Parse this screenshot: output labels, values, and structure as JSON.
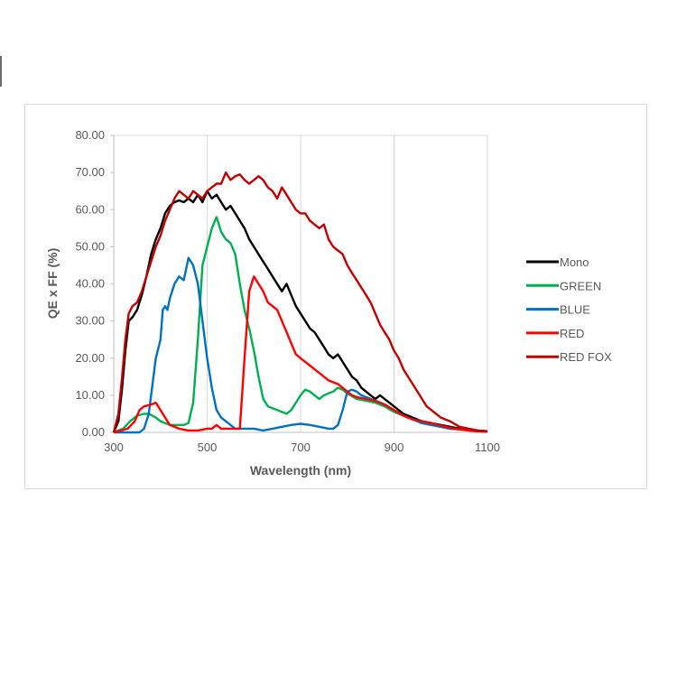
{
  "chart_data": {
    "type": "line",
    "title": "",
    "xlabel": "Wavelength (nm)",
    "ylabel": "QE x FF (%)",
    "xlim": [
      300,
      1100
    ],
    "ylim": [
      0,
      80
    ],
    "xticks": [
      "300",
      "500",
      "700",
      "900",
      "1100"
    ],
    "yticks": [
      "0.00",
      "10.00",
      "20.00",
      "30.00",
      "40.00",
      "50.00",
      "60.00",
      "70.00",
      "80.00"
    ],
    "grid": "vertical",
    "legend_position": "right",
    "series": [
      {
        "name": "Mono",
        "color": "#000000",
        "points": [
          [
            300,
            0
          ],
          [
            310,
            3
          ],
          [
            318,
            12
          ],
          [
            325,
            22
          ],
          [
            332,
            30
          ],
          [
            340,
            31
          ],
          [
            350,
            33
          ],
          [
            360,
            37
          ],
          [
            370,
            42
          ],
          [
            380,
            48
          ],
          [
            390,
            52
          ],
          [
            400,
            55
          ],
          [
            410,
            59
          ],
          [
            420,
            61
          ],
          [
            430,
            62
          ],
          [
            440,
            62.5
          ],
          [
            450,
            62
          ],
          [
            460,
            63
          ],
          [
            470,
            62
          ],
          [
            480,
            64
          ],
          [
            490,
            62
          ],
          [
            500,
            65
          ],
          [
            510,
            63
          ],
          [
            520,
            64
          ],
          [
            530,
            62
          ],
          [
            540,
            60
          ],
          [
            550,
            61
          ],
          [
            560,
            59
          ],
          [
            570,
            57
          ],
          [
            580,
            55
          ],
          [
            590,
            52
          ],
          [
            600,
            50
          ],
          [
            610,
            48
          ],
          [
            620,
            46
          ],
          [
            630,
            44
          ],
          [
            640,
            42
          ],
          [
            650,
            40
          ],
          [
            660,
            38
          ],
          [
            670,
            40
          ],
          [
            680,
            37
          ],
          [
            690,
            34
          ],
          [
            700,
            32
          ],
          [
            710,
            30
          ],
          [
            720,
            28
          ],
          [
            730,
            27
          ],
          [
            740,
            25
          ],
          [
            750,
            23
          ],
          [
            760,
            21
          ],
          [
            770,
            20
          ],
          [
            780,
            21
          ],
          [
            790,
            19
          ],
          [
            800,
            17
          ],
          [
            810,
            15
          ],
          [
            820,
            14
          ],
          [
            830,
            12
          ],
          [
            840,
            11
          ],
          [
            850,
            10
          ],
          [
            860,
            9
          ],
          [
            870,
            10
          ],
          [
            880,
            9
          ],
          [
            890,
            8
          ],
          [
            900,
            7
          ],
          [
            920,
            5
          ],
          [
            940,
            4
          ],
          [
            960,
            3
          ],
          [
            980,
            2.5
          ],
          [
            1000,
            2
          ],
          [
            1020,
            1.5
          ],
          [
            1040,
            1
          ],
          [
            1060,
            0.8
          ],
          [
            1080,
            0.5
          ],
          [
            1100,
            0.3
          ]
        ]
      },
      {
        "name": "GREEN",
        "color": "#00b050",
        "points": [
          [
            300,
            0
          ],
          [
            320,
            1
          ],
          [
            335,
            3
          ],
          [
            350,
            4.5
          ],
          [
            365,
            5
          ],
          [
            375,
            5
          ],
          [
            390,
            4
          ],
          [
            400,
            3
          ],
          [
            410,
            2.5
          ],
          [
            420,
            2
          ],
          [
            430,
            2
          ],
          [
            440,
            2
          ],
          [
            450,
            2
          ],
          [
            460,
            2.5
          ],
          [
            470,
            8
          ],
          [
            480,
            25
          ],
          [
            490,
            45
          ],
          [
            500,
            50
          ],
          [
            510,
            55
          ],
          [
            520,
            58
          ],
          [
            530,
            54
          ],
          [
            540,
            52
          ],
          [
            550,
            51
          ],
          [
            560,
            48
          ],
          [
            570,
            40
          ],
          [
            580,
            33
          ],
          [
            590,
            28
          ],
          [
            600,
            22
          ],
          [
            610,
            15
          ],
          [
            620,
            9
          ],
          [
            630,
            7
          ],
          [
            640,
            6.5
          ],
          [
            650,
            6
          ],
          [
            660,
            5.5
          ],
          [
            670,
            5
          ],
          [
            680,
            6
          ],
          [
            690,
            8
          ],
          [
            700,
            10
          ],
          [
            710,
            11.5
          ],
          [
            720,
            11
          ],
          [
            730,
            10
          ],
          [
            740,
            9
          ],
          [
            750,
            10
          ],
          [
            760,
            10.5
          ],
          [
            770,
            11
          ],
          [
            780,
            12
          ],
          [
            790,
            11.5
          ],
          [
            800,
            10.5
          ],
          [
            820,
            9
          ],
          [
            840,
            8.5
          ],
          [
            860,
            8
          ],
          [
            880,
            7
          ],
          [
            900,
            5.5
          ],
          [
            920,
            4.5
          ],
          [
            940,
            3.5
          ],
          [
            960,
            2.5
          ],
          [
            980,
            2
          ],
          [
            1000,
            1.5
          ],
          [
            1020,
            1
          ],
          [
            1040,
            0.8
          ],
          [
            1060,
            0.6
          ],
          [
            1080,
            0.4
          ],
          [
            1100,
            0.2
          ]
        ]
      },
      {
        "name": "BLUE",
        "color": "#0070c0",
        "points": [
          [
            300,
            0
          ],
          [
            340,
            0
          ],
          [
            355,
            0
          ],
          [
            365,
            1
          ],
          [
            375,
            5
          ],
          [
            385,
            15
          ],
          [
            390,
            20
          ],
          [
            400,
            25
          ],
          [
            405,
            33
          ],
          [
            410,
            34
          ],
          [
            415,
            33
          ],
          [
            420,
            36
          ],
          [
            430,
            40
          ],
          [
            440,
            42
          ],
          [
            450,
            41
          ],
          [
            460,
            47
          ],
          [
            470,
            45
          ],
          [
            480,
            40
          ],
          [
            490,
            30
          ],
          [
            500,
            20
          ],
          [
            510,
            12
          ],
          [
            520,
            6
          ],
          [
            530,
            4
          ],
          [
            540,
            3
          ],
          [
            550,
            2
          ],
          [
            560,
            1
          ],
          [
            580,
            1
          ],
          [
            600,
            1
          ],
          [
            620,
            0.5
          ],
          [
            640,
            1
          ],
          [
            660,
            1.5
          ],
          [
            680,
            2
          ],
          [
            700,
            2.3
          ],
          [
            720,
            2
          ],
          [
            740,
            1.5
          ],
          [
            760,
            1
          ],
          [
            770,
            1
          ],
          [
            780,
            2
          ],
          [
            790,
            6
          ],
          [
            800,
            11
          ],
          [
            810,
            11.5
          ],
          [
            820,
            11
          ],
          [
            830,
            10
          ],
          [
            840,
            9.5
          ],
          [
            860,
            8.5
          ],
          [
            880,
            7.5
          ],
          [
            900,
            6
          ],
          [
            920,
            4.5
          ],
          [
            940,
            3.5
          ],
          [
            960,
            2.5
          ],
          [
            980,
            2
          ],
          [
            1000,
            1.5
          ],
          [
            1020,
            1
          ],
          [
            1040,
            0.8
          ],
          [
            1060,
            0.5
          ],
          [
            1080,
            0.3
          ],
          [
            1100,
            0.2
          ]
        ]
      },
      {
        "name": "RED",
        "color": "#ff0000",
        "points": [
          [
            300,
            0
          ],
          [
            330,
            1
          ],
          [
            345,
            3
          ],
          [
            355,
            6
          ],
          [
            365,
            7
          ],
          [
            380,
            7.5
          ],
          [
            390,
            8
          ],
          [
            400,
            6
          ],
          [
            410,
            4
          ],
          [
            420,
            2
          ],
          [
            440,
            1
          ],
          [
            460,
            0.5
          ],
          [
            480,
            0.5
          ],
          [
            500,
            1
          ],
          [
            510,
            1
          ],
          [
            520,
            2
          ],
          [
            530,
            1
          ],
          [
            550,
            1
          ],
          [
            570,
            1
          ],
          [
            580,
            20
          ],
          [
            590,
            38
          ],
          [
            600,
            42
          ],
          [
            610,
            40
          ],
          [
            620,
            38
          ],
          [
            630,
            35
          ],
          [
            640,
            34
          ],
          [
            650,
            33
          ],
          [
            660,
            30
          ],
          [
            670,
            27
          ],
          [
            680,
            24
          ],
          [
            690,
            21
          ],
          [
            700,
            20
          ],
          [
            710,
            19
          ],
          [
            720,
            18
          ],
          [
            730,
            17
          ],
          [
            740,
            16
          ],
          [
            750,
            15
          ],
          [
            760,
            14
          ],
          [
            770,
            13.5
          ],
          [
            780,
            13
          ],
          [
            790,
            12
          ],
          [
            800,
            11
          ],
          [
            810,
            10
          ],
          [
            820,
            9.5
          ],
          [
            840,
            9
          ],
          [
            860,
            8.5
          ],
          [
            880,
            7.5
          ],
          [
            900,
            6
          ],
          [
            920,
            4.5
          ],
          [
            940,
            3.5
          ],
          [
            960,
            3
          ],
          [
            980,
            2.5
          ],
          [
            1000,
            1.8
          ],
          [
            1020,
            1.2
          ],
          [
            1040,
            0.8
          ],
          [
            1060,
            0.5
          ],
          [
            1080,
            0.3
          ],
          [
            1100,
            0.2
          ]
        ]
      },
      {
        "name": "RED FOX",
        "color": "#c00000",
        "points": [
          [
            300,
            0
          ],
          [
            310,
            5
          ],
          [
            318,
            15
          ],
          [
            325,
            25
          ],
          [
            332,
            32
          ],
          [
            340,
            34
          ],
          [
            350,
            35
          ],
          [
            360,
            38
          ],
          [
            370,
            42
          ],
          [
            380,
            46
          ],
          [
            390,
            50
          ],
          [
            400,
            53
          ],
          [
            410,
            57
          ],
          [
            420,
            60
          ],
          [
            430,
            63
          ],
          [
            440,
            65
          ],
          [
            450,
            64
          ],
          [
            460,
            63
          ],
          [
            470,
            65
          ],
          [
            480,
            64
          ],
          [
            490,
            63
          ],
          [
            500,
            65
          ],
          [
            510,
            66
          ],
          [
            520,
            67
          ],
          [
            530,
            67
          ],
          [
            540,
            70
          ],
          [
            550,
            68
          ],
          [
            560,
            69
          ],
          [
            570,
            69.5
          ],
          [
            580,
            68
          ],
          [
            590,
            67
          ],
          [
            600,
            68
          ],
          [
            610,
            69
          ],
          [
            620,
            68
          ],
          [
            630,
            66
          ],
          [
            640,
            65
          ],
          [
            650,
            63
          ],
          [
            660,
            66
          ],
          [
            670,
            64
          ],
          [
            680,
            62
          ],
          [
            690,
            60
          ],
          [
            700,
            59
          ],
          [
            710,
            59
          ],
          [
            720,
            57
          ],
          [
            730,
            56
          ],
          [
            740,
            55
          ],
          [
            750,
            56
          ],
          [
            760,
            52
          ],
          [
            770,
            50
          ],
          [
            780,
            49
          ],
          [
            790,
            48
          ],
          [
            800,
            45
          ],
          [
            810,
            43
          ],
          [
            820,
            41
          ],
          [
            830,
            39
          ],
          [
            840,
            37
          ],
          [
            850,
            35
          ],
          [
            860,
            32
          ],
          [
            870,
            29
          ],
          [
            880,
            27
          ],
          [
            890,
            25
          ],
          [
            900,
            22
          ],
          [
            910,
            20
          ],
          [
            920,
            17
          ],
          [
            930,
            15
          ],
          [
            940,
            13
          ],
          [
            950,
            11
          ],
          [
            960,
            9
          ],
          [
            970,
            7
          ],
          [
            980,
            6
          ],
          [
            990,
            5
          ],
          [
            1000,
            4
          ],
          [
            1020,
            3
          ],
          [
            1040,
            1.5
          ],
          [
            1060,
            1
          ],
          [
            1080,
            0.5
          ],
          [
            1100,
            0.3
          ]
        ]
      }
    ]
  }
}
